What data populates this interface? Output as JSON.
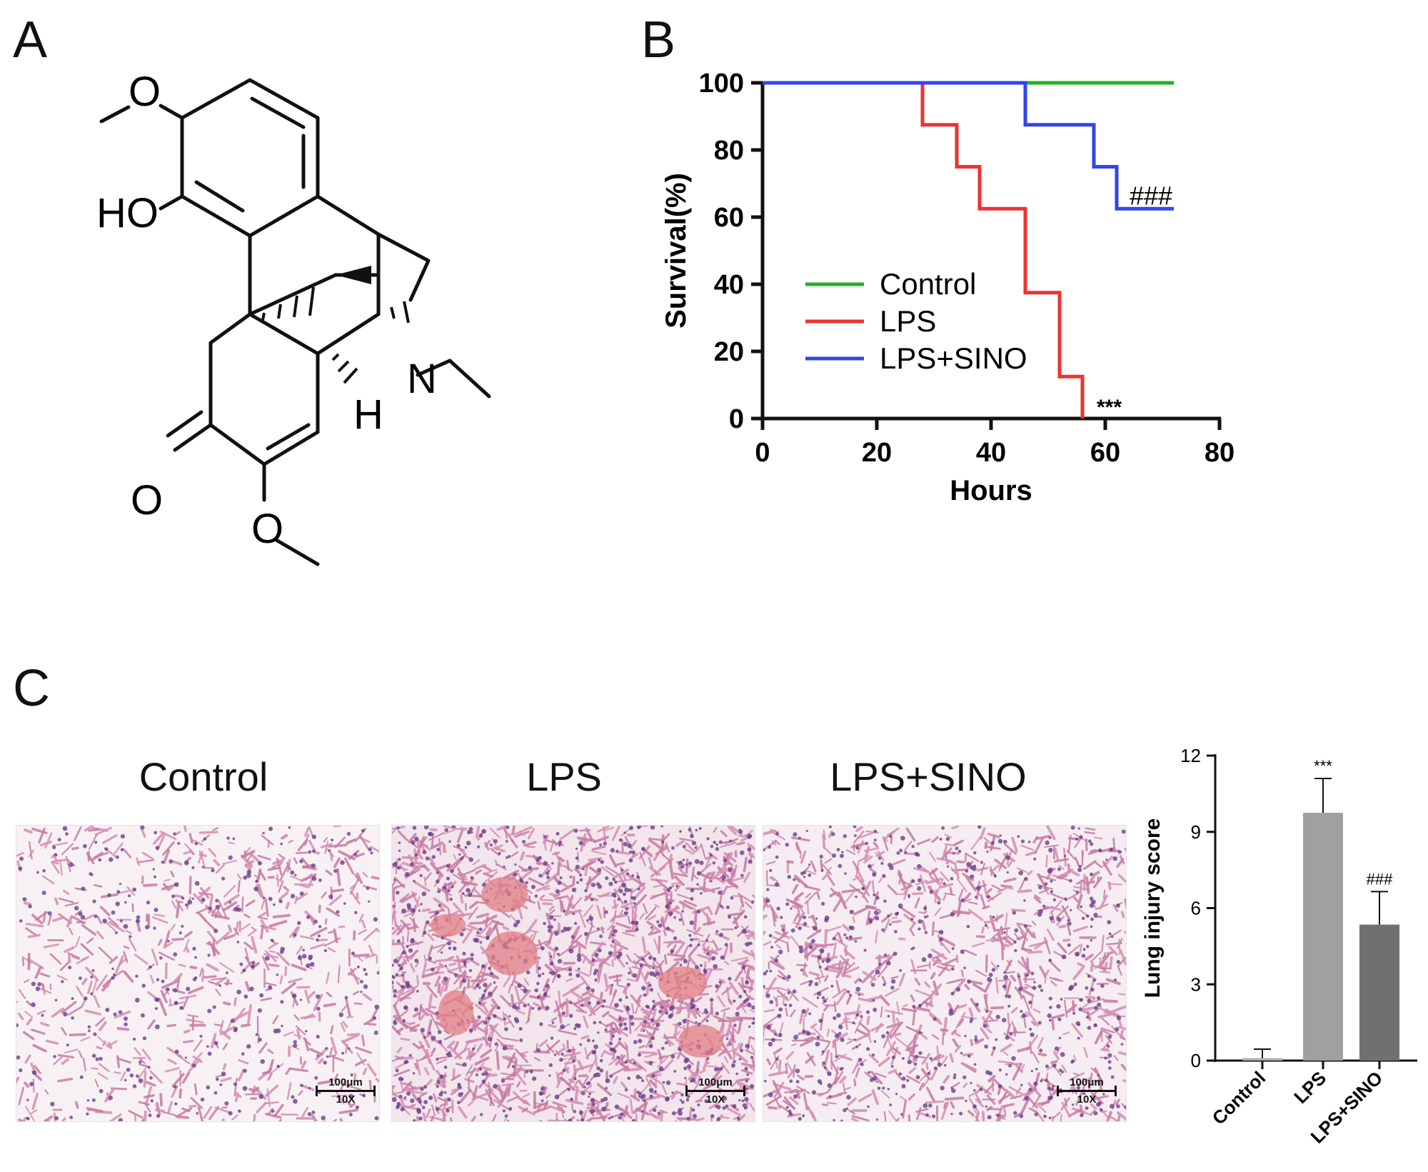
{
  "panels": {
    "a": "A",
    "b": "B",
    "c": "C"
  },
  "structure": {
    "atoms": {
      "o_top": "O",
      "ho": "HO",
      "n": "N",
      "h": "H",
      "o_keto": "O",
      "o_bottom": "O"
    }
  },
  "survival_chart": {
    "chart_data": {
      "type": "line",
      "step": true,
      "title": "",
      "xlabel": "Hours",
      "ylabel": "Survival(%)",
      "xlim": [
        0,
        80
      ],
      "ylim": [
        0,
        100
      ],
      "x_ticks": [
        0,
        20,
        40,
        60,
        80
      ],
      "y_ticks": [
        0,
        20,
        40,
        60,
        80,
        100
      ],
      "legend_position": "center-left",
      "series": [
        {
          "name": "Control",
          "color": "#22b022",
          "points": [
            [
              0,
              100
            ],
            [
              72,
              100
            ]
          ]
        },
        {
          "name": "LPS",
          "color": "#ee3333",
          "points": [
            [
              0,
              100
            ],
            [
              28,
              100
            ],
            [
              28,
              87.5
            ],
            [
              34,
              87.5
            ],
            [
              34,
              75
            ],
            [
              38,
              75
            ],
            [
              38,
              62.5
            ],
            [
              46,
              62.5
            ],
            [
              46,
              37.5
            ],
            [
              52,
              37.5
            ],
            [
              52,
              12.5
            ],
            [
              56,
              12.5
            ],
            [
              56,
              0
            ]
          ]
        },
        {
          "name": "LPS+SINO",
          "color": "#3344ee",
          "points": [
            [
              0,
              100
            ],
            [
              46,
              100
            ],
            [
              46,
              87.5
            ],
            [
              58,
              87.5
            ],
            [
              58,
              75
            ],
            [
              62,
              75
            ],
            [
              62,
              62.5
            ],
            [
              72,
              62.5
            ]
          ]
        }
      ],
      "annotations": [
        {
          "text": "***",
          "x": 58,
          "y": 0,
          "series": "LPS"
        },
        {
          "text": "###",
          "x": 65,
          "y": 62.5,
          "series": "LPS+SINO"
        }
      ]
    }
  },
  "histology": {
    "panels": [
      {
        "title": "Control",
        "scale_value": "100μm",
        "magnification": "10X",
        "tissue_density": 0.28
      },
      {
        "title": "LPS",
        "scale_value": "100μm",
        "magnification": "10X",
        "tissue_density": 0.78
      },
      {
        "title": "LPS+SINO",
        "scale_value": "100μm",
        "magnification": "10X",
        "tissue_density": 0.5
      }
    ]
  },
  "injury_chart": {
    "chart_data": {
      "type": "bar",
      "title": "",
      "xlabel": "",
      "ylabel": "Lung injury score",
      "ylim": [
        0,
        12
      ],
      "y_ticks": [
        0,
        3,
        6,
        9,
        12
      ],
      "categories": [
        "Control",
        "LPS",
        "LPS+SINO"
      ],
      "values": [
        0.1,
        9.75,
        5.35
      ],
      "errors": [
        0.35,
        1.35,
        1.3
      ],
      "bar_colors": [
        "#b0b0b0",
        "#a0a0a0",
        "#707070"
      ],
      "annotations": [
        {
          "category": "LPS",
          "text": "***"
        },
        {
          "category": "LPS+SINO",
          "text": "###"
        }
      ]
    }
  }
}
